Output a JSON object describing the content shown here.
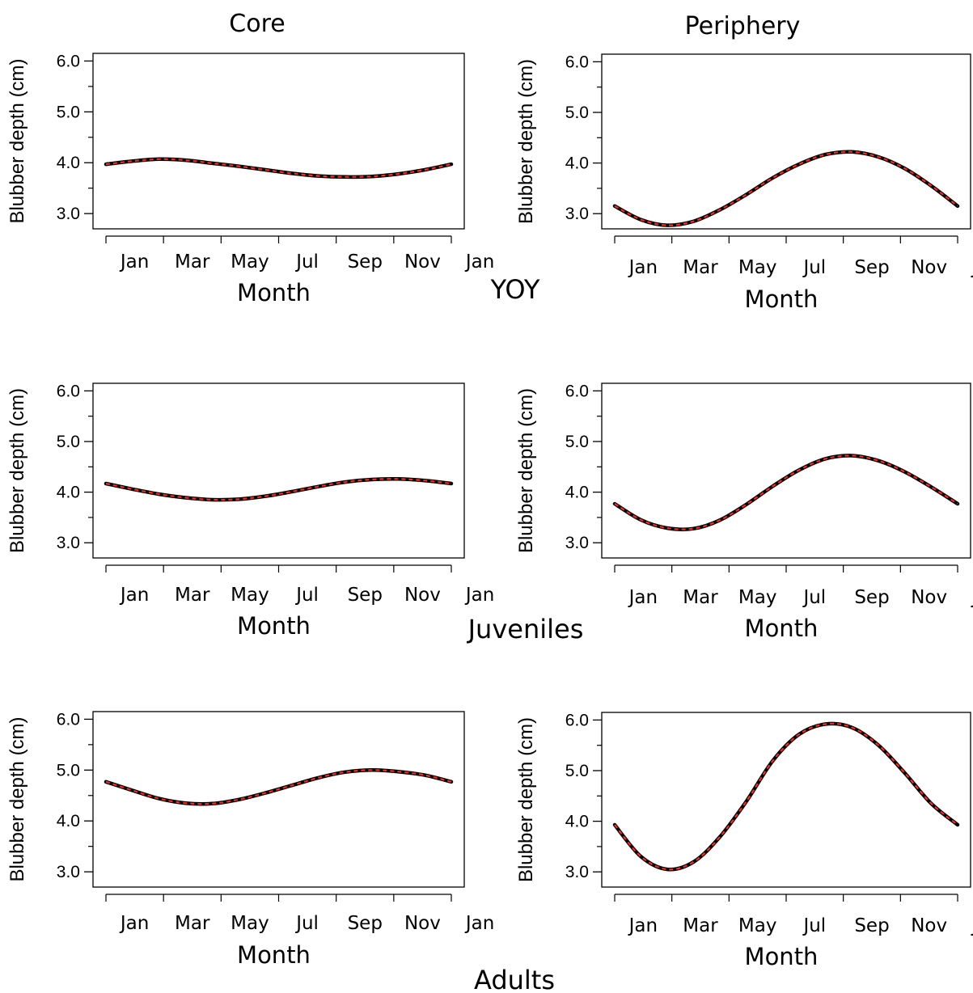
{
  "column_titles": [
    "Core",
    "Periphery"
  ],
  "group_titles": [
    "YOY",
    "Juveniles",
    "Adults"
  ],
  "colors": {
    "line_base": "#000000",
    "line_dash": "#ff2a1a",
    "axis": "#000000"
  },
  "chart_data": [
    {
      "id": "yoy-core",
      "type": "line",
      "group": "YOY",
      "column": "Core",
      "xlabel": "Month",
      "ylabel": "Blubber depth (cm)",
      "xticks": [
        "Jan",
        "Mar",
        "May",
        "Jul",
        "Sep",
        "Nov",
        "Jan"
      ],
      "yticks": [
        "6.0",
        "5.0",
        "4.0",
        "3.0"
      ],
      "ytick_values": [
        6,
        5,
        4,
        3
      ],
      "ylim": [
        2.7,
        6.15
      ],
      "x": [
        0,
        1,
        2,
        3,
        4,
        5,
        6,
        7,
        8,
        9,
        10,
        11,
        12,
        13
      ],
      "y": [
        3.97,
        4.03,
        4.07,
        4.05,
        3.99,
        3.93,
        3.86,
        3.79,
        3.74,
        3.72,
        3.73,
        3.78,
        3.86,
        3.97
      ]
    },
    {
      "id": "yoy-periphery",
      "type": "line",
      "group": "YOY",
      "column": "Periphery",
      "xlabel": "Month",
      "ylabel": "Blubber depth (cm)",
      "xticks": [
        "Jan",
        "Mar",
        "May",
        "Jul",
        "Sep",
        "Nov",
        "Jan"
      ],
      "yticks": [
        "6.0",
        "5.0",
        "4.0",
        "3.0"
      ],
      "ytick_values": [
        6,
        5,
        4,
        3
      ],
      "ylim": [
        2.7,
        6.15
      ],
      "x": [
        0,
        1,
        2,
        3,
        4,
        5,
        6,
        7,
        8,
        9,
        10,
        11,
        12,
        13
      ],
      "y": [
        3.15,
        2.88,
        2.77,
        2.85,
        3.08,
        3.38,
        3.71,
        3.98,
        4.17,
        4.22,
        4.12,
        3.89,
        3.55,
        3.15
      ]
    },
    {
      "id": "juveniles-core",
      "type": "line",
      "group": "Juveniles",
      "column": "Core",
      "xlabel": "Month",
      "ylabel": "Blubber depth (cm)",
      "xticks": [
        "Jan",
        "Mar",
        "May",
        "Jul",
        "Sep",
        "Nov",
        "Jan"
      ],
      "yticks": [
        "6.0",
        "5.0",
        "4.0",
        "3.0"
      ],
      "ytick_values": [
        6,
        5,
        4,
        3
      ],
      "ylim": [
        2.7,
        6.15
      ],
      "x": [
        0,
        1,
        2,
        3,
        4,
        5,
        6,
        7,
        8,
        9,
        10,
        11,
        12,
        13
      ],
      "y": [
        4.17,
        4.06,
        3.96,
        3.89,
        3.85,
        3.86,
        3.92,
        4.01,
        4.11,
        4.2,
        4.25,
        4.26,
        4.23,
        4.17
      ]
    },
    {
      "id": "juveniles-periphery",
      "type": "line",
      "group": "Juveniles",
      "column": "Periphery",
      "xlabel": "Month",
      "ylabel": "Blubber depth (cm)",
      "xticks": [
        "Jan",
        "Mar",
        "May",
        "Jul",
        "Sep",
        "Nov",
        "Jan"
      ],
      "yticks": [
        "6.0",
        "5.0",
        "4.0",
        "3.0"
      ],
      "ytick_values": [
        6,
        5,
        4,
        3
      ],
      "ylim": [
        2.7,
        6.15
      ],
      "x": [
        0,
        1,
        2,
        3,
        4,
        5,
        6,
        7,
        8,
        9,
        10,
        11,
        12,
        13
      ],
      "y": [
        3.77,
        3.45,
        3.29,
        3.28,
        3.45,
        3.76,
        4.12,
        4.44,
        4.66,
        4.72,
        4.62,
        4.4,
        4.1,
        3.77
      ]
    },
    {
      "id": "adults-core",
      "type": "line",
      "group": "Adults",
      "column": "Core",
      "xlabel": "Month",
      "ylabel": "Blubber depth (cm)",
      "xticks": [
        "Jan",
        "Mar",
        "May",
        "Jul",
        "Sep",
        "Nov",
        "Jan"
      ],
      "yticks": [
        "6.0",
        "5.0",
        "4.0",
        "3.0"
      ],
      "ytick_values": [
        6,
        5,
        4,
        3
      ],
      "ylim": [
        2.7,
        6.15
      ],
      "x": [
        0,
        1,
        2,
        3,
        4,
        5,
        6,
        7,
        8,
        9,
        10,
        11,
        12,
        13
      ],
      "y": [
        4.77,
        4.6,
        4.44,
        4.35,
        4.34,
        4.42,
        4.55,
        4.7,
        4.85,
        4.96,
        5.0,
        4.97,
        4.9,
        4.77
      ]
    },
    {
      "id": "adults-periphery",
      "type": "line",
      "group": "Adults",
      "column": "Periphery",
      "xlabel": "Month",
      "ylabel": "Blubber depth (cm)",
      "xticks": [
        "Jan",
        "Mar",
        "May",
        "Jul",
        "Sep",
        "Nov",
        "Jan"
      ],
      "yticks": [
        "6.0",
        "5.0",
        "4.0",
        "3.0"
      ],
      "ytick_values": [
        6,
        5,
        4,
        3
      ],
      "ylim": [
        2.7,
        6.15
      ],
      "x": [
        0,
        1,
        2,
        3,
        4,
        5,
        6,
        7,
        8,
        9,
        10,
        11,
        12,
        13
      ],
      "y": [
        3.93,
        3.3,
        3.05,
        3.2,
        3.7,
        4.4,
        5.2,
        5.72,
        5.92,
        5.85,
        5.5,
        4.95,
        4.35,
        3.93
      ]
    }
  ]
}
